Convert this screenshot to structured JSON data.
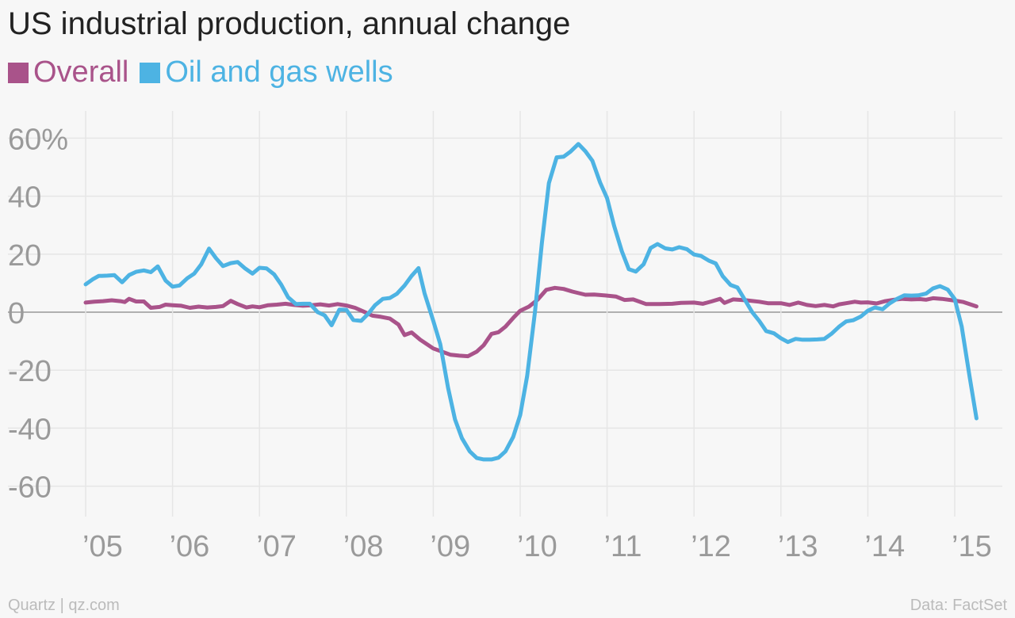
{
  "colors": {
    "overall": "#a9538a",
    "oil": "#4db3e3"
  },
  "chart_data": {
    "type": "line",
    "title": "US industrial production, annual change",
    "x_tick_labels": [
      "’05",
      "’06",
      "’07",
      "’08",
      "’09",
      "’10",
      "’11",
      "’12",
      "’13",
      "’14",
      "’15"
    ],
    "y_tick_labels": [
      "60%",
      "40",
      "20",
      "0",
      "-20",
      "-40",
      "-60"
    ],
    "y_ticks": [
      60,
      40,
      20,
      0,
      -20,
      -40,
      -60
    ],
    "ylim": [
      -70,
      66
    ],
    "xlim": [
      2005,
      2015.33
    ],
    "grid": true,
    "legend_position": "top-left",
    "series": [
      {
        "name": "Overall",
        "color": "#a9538a",
        "points": [
          [
            2005.0,
            3.3
          ],
          [
            2005.1,
            3.6
          ],
          [
            2005.2,
            3.8
          ],
          [
            2005.3,
            4.1
          ],
          [
            2005.4,
            3.8
          ],
          [
            2005.45,
            3.5
          ],
          [
            2005.5,
            4.6
          ],
          [
            2005.58,
            3.7
          ],
          [
            2005.67,
            3.7
          ],
          [
            2005.75,
            1.5
          ],
          [
            2005.85,
            1.8
          ],
          [
            2005.92,
            2.6
          ],
          [
            2006.0,
            2.4
          ],
          [
            2006.1,
            2.2
          ],
          [
            2006.2,
            1.5
          ],
          [
            2006.3,
            1.9
          ],
          [
            2006.4,
            1.6
          ],
          [
            2006.5,
            1.8
          ],
          [
            2006.58,
            2.1
          ],
          [
            2006.67,
            3.9
          ],
          [
            2006.75,
            2.8
          ],
          [
            2006.85,
            1.6
          ],
          [
            2006.92,
            2.0
          ],
          [
            2007.0,
            1.7
          ],
          [
            2007.1,
            2.4
          ],
          [
            2007.2,
            2.6
          ],
          [
            2007.3,
            2.9
          ],
          [
            2007.4,
            2.5
          ],
          [
            2007.5,
            2.2
          ],
          [
            2007.6,
            2.4
          ],
          [
            2007.7,
            2.7
          ],
          [
            2007.8,
            2.3
          ],
          [
            2007.9,
            2.8
          ],
          [
            2008.0,
            2.3
          ],
          [
            2008.1,
            1.5
          ],
          [
            2008.2,
            0.2
          ],
          [
            2008.3,
            -1.2
          ],
          [
            2008.4,
            -1.6
          ],
          [
            2008.5,
            -2.2
          ],
          [
            2008.6,
            -4.3
          ],
          [
            2008.67,
            -7.9
          ],
          [
            2008.75,
            -7.0
          ],
          [
            2008.85,
            -9.5
          ],
          [
            2009.0,
            -12.5
          ],
          [
            2009.1,
            -13.6
          ],
          [
            2009.2,
            -14.7
          ],
          [
            2009.3,
            -15.0
          ],
          [
            2009.4,
            -15.2
          ],
          [
            2009.5,
            -13.6
          ],
          [
            2009.58,
            -11.4
          ],
          [
            2009.67,
            -7.5
          ],
          [
            2009.75,
            -6.9
          ],
          [
            2009.83,
            -5.0
          ],
          [
            2009.92,
            -2.0
          ],
          [
            2010.0,
            0.5
          ],
          [
            2010.1,
            1.9
          ],
          [
            2010.2,
            4.3
          ],
          [
            2010.3,
            7.7
          ],
          [
            2010.4,
            8.4
          ],
          [
            2010.5,
            8.0
          ],
          [
            2010.6,
            7.1
          ],
          [
            2010.75,
            6.0
          ],
          [
            2010.85,
            6.1
          ],
          [
            2011.0,
            5.7
          ],
          [
            2011.1,
            5.4
          ],
          [
            2011.2,
            4.2
          ],
          [
            2011.3,
            4.4
          ],
          [
            2011.45,
            2.8
          ],
          [
            2011.6,
            2.8
          ],
          [
            2011.75,
            2.9
          ],
          [
            2011.85,
            3.2
          ],
          [
            2012.0,
            3.3
          ],
          [
            2012.1,
            2.9
          ],
          [
            2012.2,
            3.7
          ],
          [
            2012.3,
            4.6
          ],
          [
            2012.35,
            3.2
          ],
          [
            2012.45,
            4.4
          ],
          [
            2012.6,
            4.1
          ],
          [
            2012.75,
            3.6
          ],
          [
            2012.85,
            3.1
          ],
          [
            2013.0,
            3.1
          ],
          [
            2013.1,
            2.5
          ],
          [
            2013.2,
            3.3
          ],
          [
            2013.3,
            2.5
          ],
          [
            2013.4,
            2.1
          ],
          [
            2013.5,
            2.5
          ],
          [
            2013.6,
            2.0
          ],
          [
            2013.67,
            2.7
          ],
          [
            2013.75,
            3.1
          ],
          [
            2013.85,
            3.6
          ],
          [
            2013.92,
            3.3
          ],
          [
            2014.0,
            3.4
          ],
          [
            2014.1,
            3.0
          ],
          [
            2014.2,
            3.8
          ],
          [
            2014.3,
            4.3
          ],
          [
            2014.4,
            4.6
          ],
          [
            2014.5,
            4.4
          ],
          [
            2014.6,
            4.5
          ],
          [
            2014.67,
            4.3
          ],
          [
            2014.75,
            4.8
          ],
          [
            2014.85,
            4.6
          ],
          [
            2015.0,
            4.0
          ],
          [
            2015.1,
            3.5
          ],
          [
            2015.25,
            2.0
          ]
        ]
      },
      {
        "name": "Oil and gas wells",
        "color": "#4db3e3",
        "points": [
          [
            2005.0,
            9.6
          ],
          [
            2005.08,
            11.3
          ],
          [
            2005.15,
            12.5
          ],
          [
            2005.25,
            12.6
          ],
          [
            2005.33,
            12.8
          ],
          [
            2005.42,
            10.3
          ],
          [
            2005.5,
            12.8
          ],
          [
            2005.58,
            13.9
          ],
          [
            2005.67,
            14.4
          ],
          [
            2005.75,
            13.8
          ],
          [
            2005.83,
            15.8
          ],
          [
            2005.92,
            10.9
          ],
          [
            2006.0,
            8.8
          ],
          [
            2006.08,
            9.2
          ],
          [
            2006.17,
            11.7
          ],
          [
            2006.25,
            13.3
          ],
          [
            2006.33,
            16.5
          ],
          [
            2006.42,
            21.9
          ],
          [
            2006.5,
            18.6
          ],
          [
            2006.58,
            15.9
          ],
          [
            2006.67,
            16.9
          ],
          [
            2006.75,
            17.3
          ],
          [
            2006.83,
            15.2
          ],
          [
            2006.92,
            13.3
          ],
          [
            2007.0,
            15.3
          ],
          [
            2007.08,
            15.1
          ],
          [
            2007.17,
            13.0
          ],
          [
            2007.25,
            9.5
          ],
          [
            2007.33,
            5.1
          ],
          [
            2007.42,
            2.8
          ],
          [
            2007.5,
            2.9
          ],
          [
            2007.58,
            2.9
          ],
          [
            2007.67,
            0.0
          ],
          [
            2007.75,
            -1.1
          ],
          [
            2007.83,
            -4.5
          ],
          [
            2007.92,
            0.9
          ],
          [
            2008.0,
            0.8
          ],
          [
            2008.08,
            -2.7
          ],
          [
            2008.17,
            -3.0
          ],
          [
            2008.25,
            -0.6
          ],
          [
            2008.33,
            2.4
          ],
          [
            2008.42,
            4.6
          ],
          [
            2008.5,
            4.9
          ],
          [
            2008.58,
            6.3
          ],
          [
            2008.67,
            9.2
          ],
          [
            2008.75,
            12.5
          ],
          [
            2008.83,
            15.2
          ],
          [
            2008.9,
            6.5
          ],
          [
            2009.0,
            -3.0
          ],
          [
            2009.08,
            -11.0
          ],
          [
            2009.17,
            -26.0
          ],
          [
            2009.25,
            -37.0
          ],
          [
            2009.33,
            -43.5
          ],
          [
            2009.42,
            -48.0
          ],
          [
            2009.5,
            -50.3
          ],
          [
            2009.58,
            -50.8
          ],
          [
            2009.67,
            -50.8
          ],
          [
            2009.75,
            -50.2
          ],
          [
            2009.83,
            -48.0
          ],
          [
            2009.92,
            -43.0
          ],
          [
            2010.0,
            -35.5
          ],
          [
            2010.08,
            -22.0
          ],
          [
            2010.17,
            0.0
          ],
          [
            2010.25,
            24.0
          ],
          [
            2010.33,
            44.5
          ],
          [
            2010.42,
            53.4
          ],
          [
            2010.5,
            53.6
          ],
          [
            2010.58,
            55.4
          ],
          [
            2010.67,
            58.0
          ],
          [
            2010.75,
            55.5
          ],
          [
            2010.83,
            52.2
          ],
          [
            2010.92,
            44.7
          ],
          [
            2011.0,
            39.3
          ],
          [
            2011.08,
            29.8
          ],
          [
            2011.17,
            21.0
          ],
          [
            2011.25,
            14.8
          ],
          [
            2011.33,
            14.0
          ],
          [
            2011.42,
            16.5
          ],
          [
            2011.5,
            22.1
          ],
          [
            2011.58,
            23.5
          ],
          [
            2011.67,
            22.0
          ],
          [
            2011.75,
            21.6
          ],
          [
            2011.83,
            22.4
          ],
          [
            2011.92,
            21.7
          ],
          [
            2012.0,
            19.9
          ],
          [
            2012.08,
            19.4
          ],
          [
            2012.17,
            17.8
          ],
          [
            2012.25,
            16.8
          ],
          [
            2012.33,
            12.4
          ],
          [
            2012.42,
            9.4
          ],
          [
            2012.5,
            8.5
          ],
          [
            2012.58,
            4.5
          ],
          [
            2012.67,
            0.0
          ],
          [
            2012.75,
            -3.0
          ],
          [
            2012.83,
            -6.5
          ],
          [
            2012.92,
            -7.3
          ],
          [
            2013.0,
            -9.0
          ],
          [
            2013.08,
            -10.3
          ],
          [
            2013.17,
            -9.2
          ],
          [
            2013.25,
            -9.5
          ],
          [
            2013.33,
            -9.5
          ],
          [
            2013.42,
            -9.4
          ],
          [
            2013.5,
            -9.2
          ],
          [
            2013.58,
            -7.5
          ],
          [
            2013.67,
            -5.0
          ],
          [
            2013.75,
            -3.2
          ],
          [
            2013.83,
            -2.8
          ],
          [
            2013.92,
            -1.5
          ],
          [
            2014.0,
            0.5
          ],
          [
            2014.08,
            1.6
          ],
          [
            2014.17,
            1.0
          ],
          [
            2014.25,
            3.0
          ],
          [
            2014.33,
            4.5
          ],
          [
            2014.42,
            5.8
          ],
          [
            2014.5,
            5.7
          ],
          [
            2014.58,
            5.8
          ],
          [
            2014.67,
            6.4
          ],
          [
            2014.75,
            8.2
          ],
          [
            2014.83,
            9.0
          ],
          [
            2014.92,
            7.8
          ],
          [
            2015.0,
            4.5
          ],
          [
            2015.08,
            -5.0
          ],
          [
            2015.17,
            -22.0
          ],
          [
            2015.25,
            -36.6
          ]
        ]
      }
    ]
  },
  "footer": {
    "source_left": "Quartz | qz.com",
    "source_right": "Data: FactSet"
  }
}
